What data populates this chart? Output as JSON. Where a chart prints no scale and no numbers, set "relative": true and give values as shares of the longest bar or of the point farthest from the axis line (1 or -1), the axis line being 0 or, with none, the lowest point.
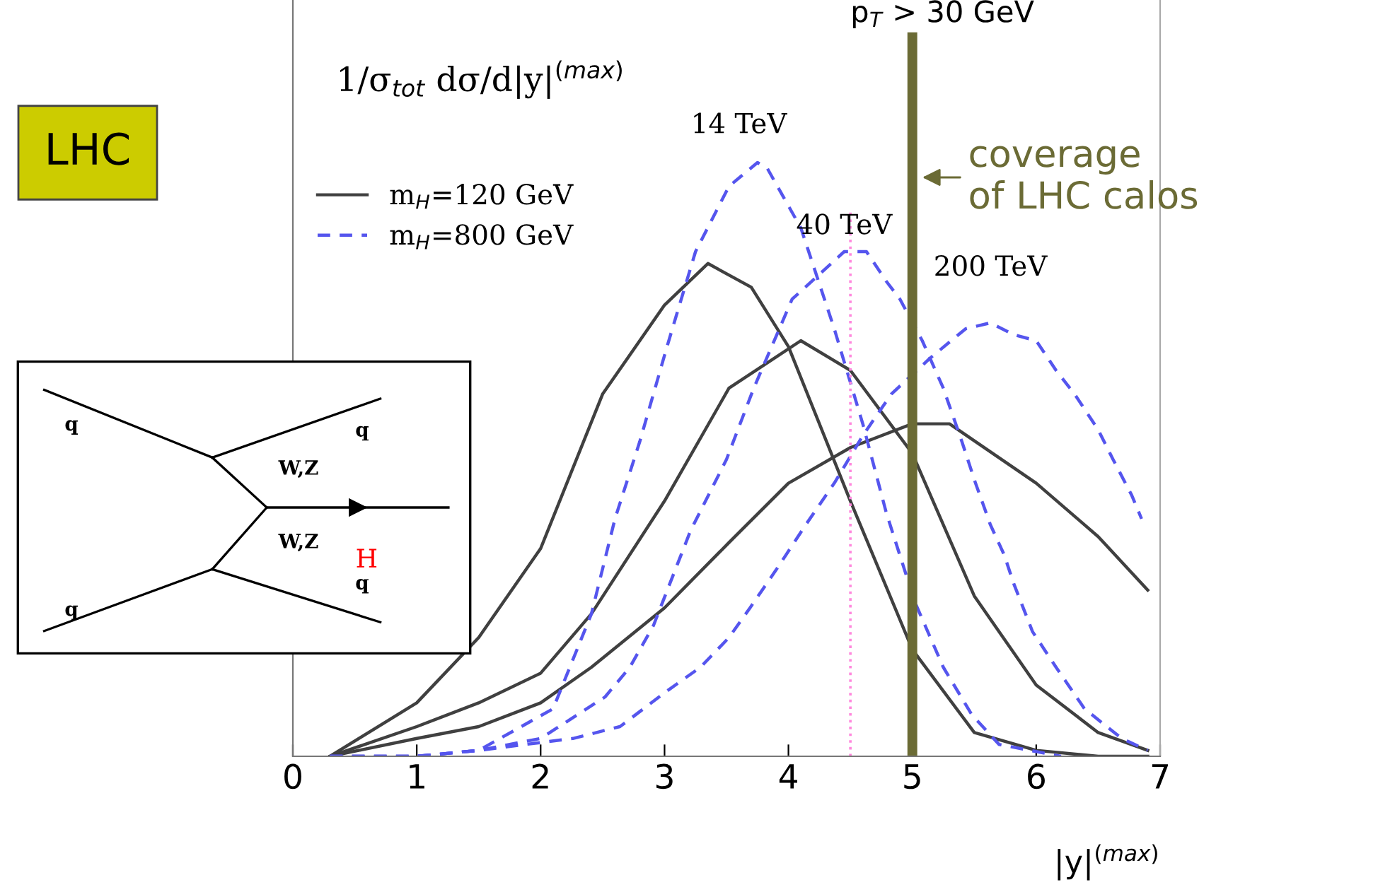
{
  "chart_data": {
    "type": "line",
    "relative": true,
    "ylabel": "1/σ$_{tot}$ dσ/d|y|$^{(max)}$",
    "xlabel": "|y|$^{(max)}$",
    "xlim": [
      0,
      7
    ],
    "xticks": [
      0,
      1,
      2,
      3,
      4,
      5,
      6,
      7
    ],
    "legend": "top left",
    "grid": false,
    "series": [
      {
        "name": "m$_{H}$=120 GeV",
        "color": "#404040",
        "line_style": "solid",
        "x": [
          0.3,
          1,
          1.5,
          2,
          2.5,
          3,
          3.35,
          3.7,
          4,
          4.5,
          5,
          5.5,
          6,
          6.5,
          6.9
        ],
        "values": [
          0,
          0.09,
          0.2,
          0.35,
          0.61,
          0.76,
          0.83,
          0.79,
          0.69,
          0.43,
          0.18,
          0.04,
          0.01,
          0,
          0
        ]
      },
      {
        "color": "#404040",
        "line_style": "solid",
        "x": [
          0.3,
          1,
          1.5,
          2,
          2.41,
          3,
          3.52,
          4.1,
          4.5,
          5,
          5.5,
          6,
          6.5,
          6.9
        ],
        "values": [
          0,
          0.05,
          0.09,
          0.14,
          0.24,
          0.43,
          0.62,
          0.7,
          0.65,
          0.51,
          0.27,
          0.12,
          0.04,
          0.01
        ]
      },
      {
        "color": "#404040",
        "line_style": "solid",
        "x": [
          0.3,
          1,
          1.5,
          2,
          2.41,
          3,
          3.52,
          4,
          4.5,
          5,
          5.3,
          6,
          6.5,
          6.9
        ],
        "values": [
          0,
          0.03,
          0.05,
          0.09,
          0.15,
          0.25,
          0.36,
          0.46,
          0.52,
          0.56,
          0.56,
          0.46,
          0.37,
          0.28
        ]
      },
      {
        "name": "m$_{H}$=800 GeV",
        "color": "#5555ee",
        "line_style": "dashed",
        "x": [
          0.3,
          1,
          1.5,
          2.1,
          2.41,
          2.6,
          2.8,
          3.02,
          3.25,
          3.52,
          3.75,
          3.83,
          4.1,
          4.37,
          4.6,
          4.79,
          5.02,
          5.25,
          5.48,
          5.7,
          6.2
        ],
        "values": [
          0,
          0,
          0.01,
          0.08,
          0.24,
          0.4,
          0.53,
          0.69,
          0.85,
          0.96,
          1,
          0.99,
          0.89,
          0.72,
          0.56,
          0.41,
          0.26,
          0.15,
          0.07,
          0.02,
          0
        ]
      },
      {
        "color": "#5555ee",
        "line_style": "dashed",
        "x": [
          0.3,
          1,
          1.5,
          2,
          2.52,
          2.72,
          2.91,
          3.21,
          3.5,
          3.72,
          4.03,
          4.45,
          4.63,
          4.79,
          4.9,
          5.08,
          5.25,
          5.4,
          5.51,
          5.63,
          5.74,
          5.82,
          5.97,
          6.16,
          6.39,
          6.69,
          6.9
        ],
        "values": [
          0,
          0,
          0.01,
          0.03,
          0.1,
          0.15,
          0.22,
          0.38,
          0.5,
          0.62,
          0.77,
          0.85,
          0.85,
          0.8,
          0.77,
          0.7,
          0.62,
          0.53,
          0.46,
          0.39,
          0.34,
          0.29,
          0.21,
          0.15,
          0.08,
          0.03,
          0.01
        ]
      },
      {
        "color": "#5555ee",
        "line_style": "dashed",
        "x": [
          0.3,
          1,
          1.5,
          2.26,
          2.64,
          3.02,
          3.29,
          3.52,
          3.69,
          3.92,
          4.14,
          4.37,
          4.6,
          4.83,
          5.14,
          5.43,
          5.63,
          5.82,
          6,
          6.16,
          6.31,
          6.5,
          6.62,
          6.77,
          6.85
        ],
        "values": [
          0,
          0,
          0.01,
          0.03,
          0.05,
          0.11,
          0.15,
          0.2,
          0.25,
          0.32,
          0.39,
          0.46,
          0.54,
          0.61,
          0.67,
          0.72,
          0.73,
          0.71,
          0.7,
          0.65,
          0.61,
          0.55,
          0.5,
          0.44,
          0.4
        ]
      }
    ],
    "ref_lines": [
      {
        "axis": "x",
        "value": 4.5,
        "color": "#ff88dd",
        "line_style": "dotted"
      },
      {
        "axis": "x",
        "value": 5,
        "label": "p$_{T}$ > 30 GeV",
        "color": "#6b6b35",
        "line_style": "solid"
      }
    ],
    "annotations": [
      "LHC",
      "coverage\nof LHC calos",
      {
        "text": "14 TeV",
        "x": 3.75,
        "y": 1
      },
      {
        "text": "40 TeV",
        "x": 4.45,
        "y": 0.85
      },
      {
        "text": "200 TeV",
        "x": 5.63,
        "y": 0.73
      },
      "q",
      "q",
      "q",
      "q",
      "W,Z",
      "W,Z",
      "H"
    ]
  }
}
